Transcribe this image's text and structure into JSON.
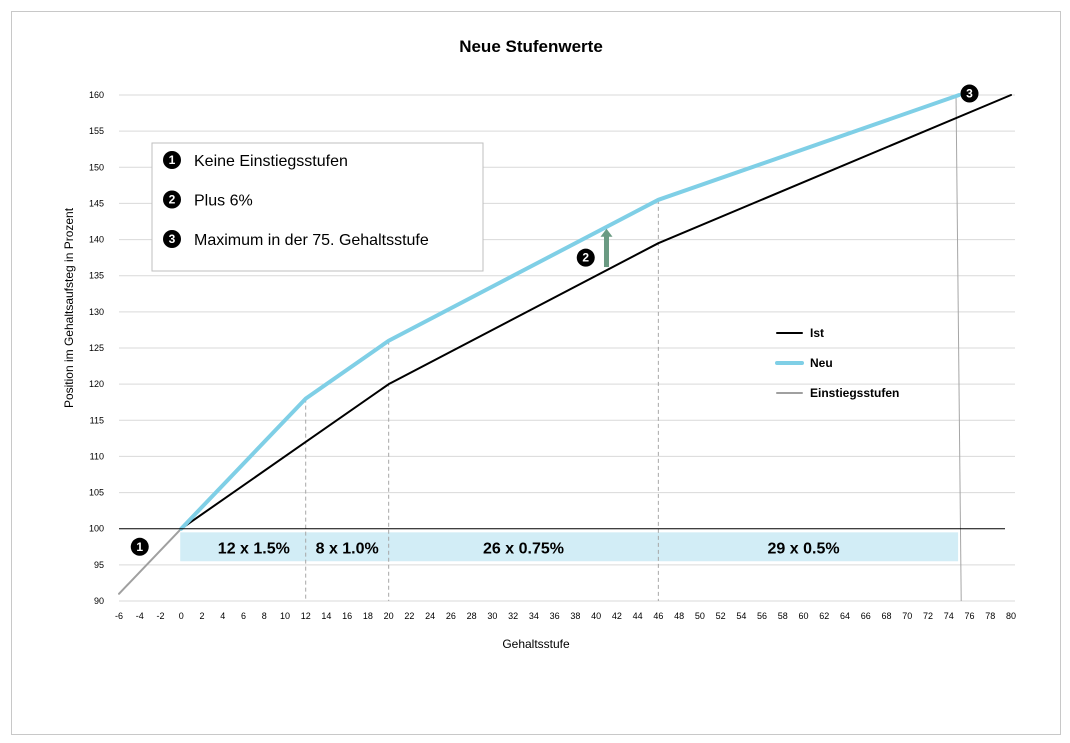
{
  "chart_data": {
    "type": "line",
    "title": "Neue Stufenwerte",
    "xlabel": "Gehaltsstufe",
    "ylabel": "Position im Gehaltsaufsteg in Prozent",
    "xlim": [
      -6,
      80
    ],
    "ylim": [
      90,
      160
    ],
    "x_ticks": [
      -6,
      -4,
      -2,
      0,
      2,
      4,
      6,
      8,
      10,
      12,
      14,
      16,
      18,
      20,
      22,
      24,
      26,
      28,
      30,
      32,
      34,
      36,
      38,
      40,
      42,
      44,
      46,
      48,
      50,
      52,
      54,
      56,
      58,
      60,
      62,
      64,
      66,
      68,
      70,
      72,
      74,
      76,
      78,
      80
    ],
    "y_ticks": [
      90,
      95,
      100,
      105,
      110,
      115,
      120,
      125,
      130,
      135,
      140,
      145,
      150,
      155,
      160
    ],
    "grid": "horizontal",
    "legend_position": "right",
    "series": [
      {
        "name": "Ist",
        "color": "#000000",
        "x": [
          0,
          12,
          20,
          46,
          80
        ],
        "y": [
          100,
          112,
          120,
          139.5,
          160
        ]
      },
      {
        "name": "Neu",
        "color": "#7fcfe6",
        "x": [
          0,
          12,
          20,
          46,
          75
        ],
        "y": [
          100,
          118,
          126,
          145.5,
          160
        ]
      },
      {
        "name": "Einstiegsstufen",
        "color": "#a0a0a0",
        "x": [
          -6,
          0
        ],
        "y": [
          91,
          100
        ]
      }
    ],
    "dividers_x": [
      12,
      20,
      46
    ],
    "max_marker_x": 75,
    "baseline_y": 100,
    "band_y": [
      95.5,
      99.5
    ],
    "band_color": "#d2edf6",
    "bands": [
      {
        "label": "12 x 1.5%",
        "x": 7
      },
      {
        "label": "8 x 1.0%",
        "x": 16
      },
      {
        "label": "26 x 0.75%",
        "x": 33
      },
      {
        "label": "29 x 0.5%",
        "x": 60
      }
    ],
    "arrow": {
      "x": 41,
      "y_from": 136.2,
      "y_to": 141.5,
      "color": "#6a9a82",
      "badge": "2",
      "badge_x": 39,
      "badge_y": 137.5
    },
    "badge_entry": {
      "num": "1",
      "x": -4,
      "y": 97.5
    },
    "badge_max": {
      "num": "3",
      "x": 76,
      "y": 160.2
    }
  },
  "notes": [
    {
      "num": "1",
      "text": "Keine Einstiegsstufen"
    },
    {
      "num": "2",
      "text": "Plus 6%"
    },
    {
      "num": "3",
      "text": "Maximum in der 75. Gehaltsstufe"
    }
  ]
}
